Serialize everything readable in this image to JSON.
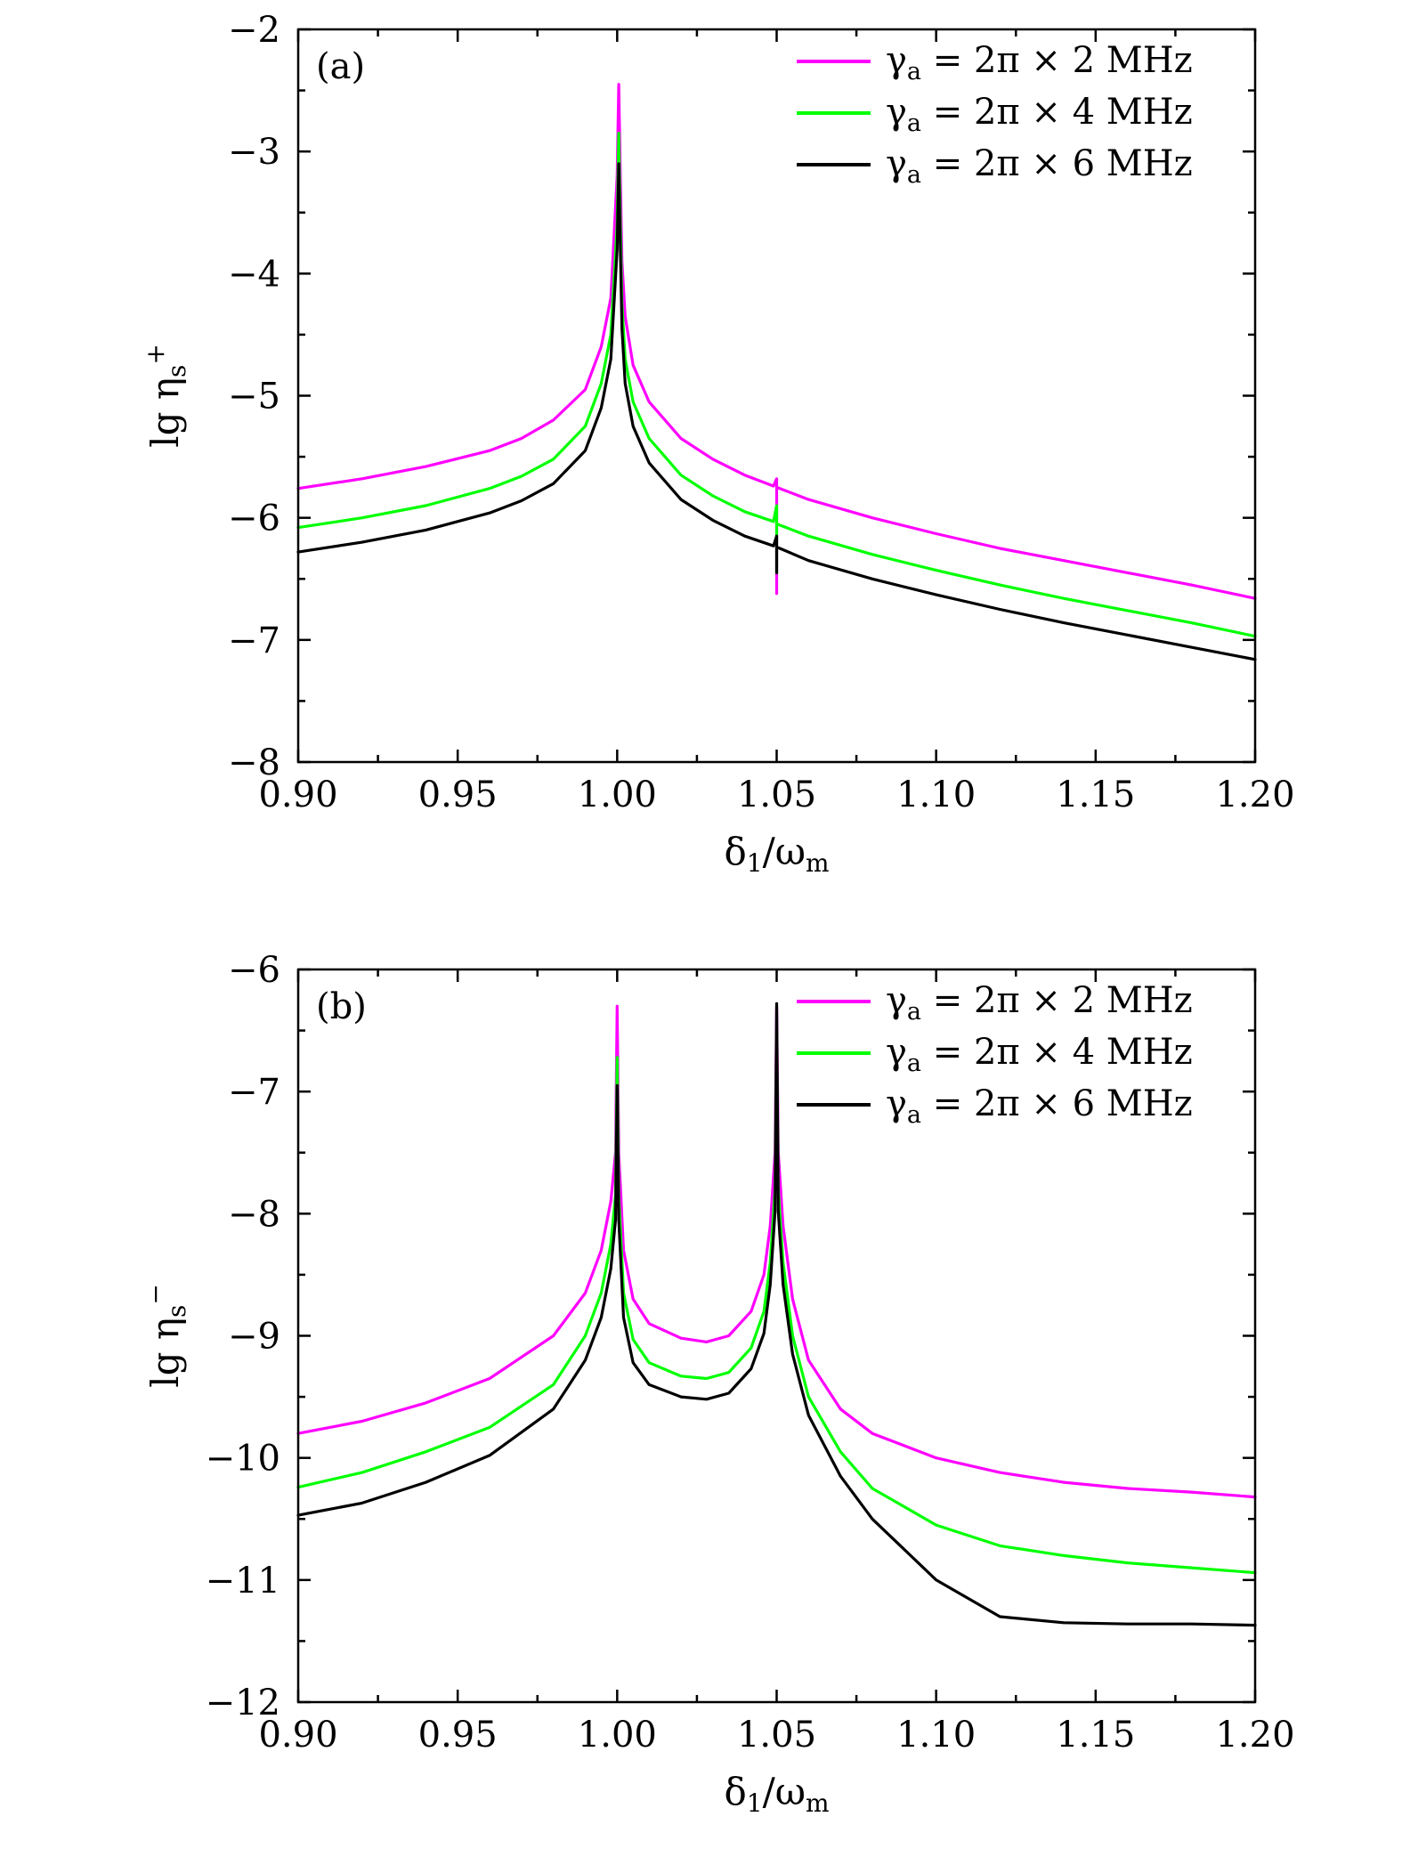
{
  "colors": {
    "series_magenta": "#ff00ff",
    "series_green": "#00ff00",
    "series_black": "#000000"
  },
  "chart_data": [
    {
      "type": "line",
      "panel_label": "(a)",
      "xlabel": "δ1/ωm",
      "xlabel_main": "δ",
      "xlabel_sub1": "1",
      "xlabel_slash": "/ω",
      "xlabel_sub2": "m",
      "ylabel": "lg ηs+",
      "ylabel_main": "lg η",
      "ylabel_sub": "s",
      "ylabel_sup": "+",
      "xlim": [
        0.9,
        1.2
      ],
      "ylim": [
        -8,
        -2
      ],
      "xticks": [
        0.9,
        0.95,
        1.0,
        1.05,
        1.1,
        1.15,
        1.2
      ],
      "xtick_labels": [
        "0.90",
        "0.95",
        "1.00",
        "1.05",
        "1.10",
        "1.15",
        "1.20"
      ],
      "yticks": [
        -2,
        -3,
        -4,
        -5,
        -6,
        -7,
        -8
      ],
      "ytick_labels": [
        "−2",
        "−3",
        "−4",
        "−5",
        "−6",
        "−7",
        "−8"
      ],
      "legend_position": "top-right",
      "series": [
        {
          "name": "γa = 2π × 2 MHz",
          "name_parts": [
            "γ",
            "a",
            " = 2π × 2 MHz"
          ],
          "color": "#ff00ff",
          "x": [
            0.9,
            0.92,
            0.94,
            0.96,
            0.97,
            0.98,
            0.99,
            0.995,
            0.998,
            1.0,
            1.0005,
            1.001,
            1.0015,
            1.0025,
            1.005,
            1.01,
            1.02,
            1.03,
            1.04,
            1.049,
            1.05,
            1.05,
            1.05,
            1.051,
            1.06,
            1.08,
            1.1,
            1.12,
            1.14,
            1.16,
            1.18,
            1.2
          ],
          "y": [
            -5.76,
            -5.68,
            -5.58,
            -5.45,
            -5.35,
            -5.2,
            -4.95,
            -4.6,
            -4.2,
            -3.2,
            -2.45,
            -3.2,
            -3.9,
            -4.35,
            -4.75,
            -5.05,
            -5.35,
            -5.52,
            -5.65,
            -5.74,
            -5.68,
            -6.62,
            -5.75,
            -5.76,
            -5.85,
            -6.0,
            -6.13,
            -6.25,
            -6.35,
            -6.45,
            -6.55,
            -6.66
          ]
        },
        {
          "name": "γa = 2π × 4 MHz",
          "name_parts": [
            "γ",
            "a",
            " = 2π × 4 MHz"
          ],
          "color": "#00ff00",
          "x": [
            0.9,
            0.92,
            0.94,
            0.96,
            0.97,
            0.98,
            0.99,
            0.995,
            0.998,
            1.0,
            1.0005,
            1.001,
            1.0015,
            1.0025,
            1.005,
            1.01,
            1.02,
            1.03,
            1.04,
            1.049,
            1.05,
            1.05,
            1.05,
            1.051,
            1.06,
            1.08,
            1.1,
            1.12,
            1.14,
            1.16,
            1.18,
            1.2
          ],
          "y": [
            -6.08,
            -6.0,
            -5.9,
            -5.76,
            -5.66,
            -5.52,
            -5.25,
            -4.9,
            -4.5,
            -3.6,
            -2.85,
            -3.6,
            -4.25,
            -4.7,
            -5.05,
            -5.35,
            -5.65,
            -5.82,
            -5.95,
            -6.03,
            -5.9,
            -6.45,
            -6.05,
            -6.06,
            -6.15,
            -6.3,
            -6.43,
            -6.55,
            -6.66,
            -6.76,
            -6.86,
            -6.97
          ]
        },
        {
          "name": "γa = 2π × 6 MHz",
          "name_parts": [
            "γ",
            "a",
            " = 2π × 6 MHz"
          ],
          "color": "#000000",
          "x": [
            0.9,
            0.92,
            0.94,
            0.96,
            0.97,
            0.98,
            0.99,
            0.995,
            0.998,
            1.0,
            1.0005,
            1.001,
            1.0015,
            1.0025,
            1.005,
            1.01,
            1.02,
            1.03,
            1.04,
            1.049,
            1.05,
            1.05,
            1.05,
            1.051,
            1.06,
            1.08,
            1.1,
            1.12,
            1.14,
            1.16,
            1.18,
            1.2
          ],
          "y": [
            -6.28,
            -6.2,
            -6.1,
            -5.96,
            -5.86,
            -5.72,
            -5.45,
            -5.1,
            -4.7,
            -3.8,
            -3.1,
            -3.8,
            -4.45,
            -4.9,
            -5.25,
            -5.55,
            -5.85,
            -6.02,
            -6.15,
            -6.23,
            -6.15,
            -6.45,
            -6.24,
            -6.25,
            -6.35,
            -6.5,
            -6.63,
            -6.75,
            -6.86,
            -6.96,
            -7.06,
            -7.16
          ]
        }
      ]
    },
    {
      "type": "line",
      "panel_label": "(b)",
      "xlabel": "δ1/ωm",
      "xlabel_main": "δ",
      "xlabel_sub1": "1",
      "xlabel_slash": "/ω",
      "xlabel_sub2": "m",
      "ylabel": "lg ηs−",
      "ylabel_main": "lg η",
      "ylabel_sub": "s",
      "ylabel_sup": "−",
      "xlim": [
        0.9,
        1.2
      ],
      "ylim": [
        -12,
        -6
      ],
      "xticks": [
        0.9,
        0.95,
        1.0,
        1.05,
        1.1,
        1.15,
        1.2
      ],
      "xtick_labels": [
        "0.90",
        "0.95",
        "1.00",
        "1.05",
        "1.10",
        "1.15",
        "1.20"
      ],
      "yticks": [
        -6,
        -7,
        -8,
        -9,
        -10,
        -11,
        -12
      ],
      "ytick_labels": [
        "−6",
        "−7",
        "−8",
        "−9",
        "−10",
        "−11",
        "−12"
      ],
      "legend_position": "top-right",
      "series": [
        {
          "name": "γa = 2π × 2 MHz",
          "name_parts": [
            "γ",
            "a",
            " = 2π × 2 MHz"
          ],
          "color": "#ff00ff",
          "x": [
            0.9,
            0.92,
            0.94,
            0.96,
            0.98,
            0.99,
            0.995,
            0.998,
            0.9995,
            1.0,
            1.0005,
            1.002,
            1.005,
            1.01,
            1.02,
            1.028,
            1.035,
            1.042,
            1.046,
            1.048,
            1.0495,
            1.05,
            1.0505,
            1.052,
            1.055,
            1.06,
            1.07,
            1.08,
            1.1,
            1.12,
            1.14,
            1.16,
            1.18,
            1.2
          ],
          "y": [
            -9.8,
            -9.7,
            -9.55,
            -9.35,
            -9.0,
            -8.65,
            -8.3,
            -7.9,
            -7.5,
            -6.3,
            -7.5,
            -8.3,
            -8.7,
            -8.9,
            -9.02,
            -9.05,
            -9.0,
            -8.8,
            -8.5,
            -8.1,
            -7.5,
            -6.3,
            -7.5,
            -8.1,
            -8.7,
            -9.2,
            -9.6,
            -9.8,
            -10.0,
            -10.12,
            -10.2,
            -10.25,
            -10.28,
            -10.32
          ]
        },
        {
          "name": "γa = 2π × 4 MHz",
          "name_parts": [
            "γ",
            "a",
            " = 2π × 4 MHz"
          ],
          "color": "#00ff00",
          "x": [
            0.9,
            0.92,
            0.94,
            0.96,
            0.98,
            0.99,
            0.995,
            0.998,
            0.9995,
            1.0,
            1.0005,
            1.002,
            1.005,
            1.01,
            1.02,
            1.028,
            1.035,
            1.042,
            1.046,
            1.048,
            1.0495,
            1.05,
            1.0505,
            1.052,
            1.055,
            1.06,
            1.07,
            1.08,
            1.1,
            1.12,
            1.14,
            1.16,
            1.18,
            1.2
          ],
          "y": [
            -10.24,
            -10.12,
            -9.95,
            -9.75,
            -9.4,
            -9.0,
            -8.65,
            -8.25,
            -7.85,
            -6.72,
            -7.85,
            -8.65,
            -9.03,
            -9.22,
            -9.33,
            -9.35,
            -9.3,
            -9.1,
            -8.8,
            -8.4,
            -7.8,
            -6.5,
            -7.8,
            -8.4,
            -9.0,
            -9.5,
            -9.95,
            -10.25,
            -10.55,
            -10.72,
            -10.8,
            -10.86,
            -10.9,
            -10.94
          ]
        },
        {
          "name": "γa = 2π × 6 MHz",
          "name_parts": [
            "γ",
            "a",
            " = 2π × 6 MHz"
          ],
          "color": "#000000",
          "x": [
            0.9,
            0.92,
            0.94,
            0.96,
            0.98,
            0.99,
            0.995,
            0.998,
            0.9995,
            1.0,
            1.0005,
            1.002,
            1.005,
            1.01,
            1.02,
            1.028,
            1.035,
            1.042,
            1.046,
            1.048,
            1.0495,
            1.05,
            1.0505,
            1.052,
            1.055,
            1.06,
            1.07,
            1.08,
            1.1,
            1.12,
            1.14,
            1.16,
            1.18,
            1.2
          ],
          "y": [
            -10.47,
            -10.37,
            -10.2,
            -9.98,
            -9.6,
            -9.2,
            -8.85,
            -8.45,
            -8.05,
            -6.95,
            -8.05,
            -8.85,
            -9.22,
            -9.4,
            -9.5,
            -9.52,
            -9.47,
            -9.27,
            -8.98,
            -8.58,
            -7.98,
            -6.28,
            -7.98,
            -8.58,
            -9.15,
            -9.65,
            -10.15,
            -10.5,
            -11.0,
            -11.3,
            -11.35,
            -11.36,
            -11.36,
            -11.37
          ]
        }
      ]
    }
  ]
}
